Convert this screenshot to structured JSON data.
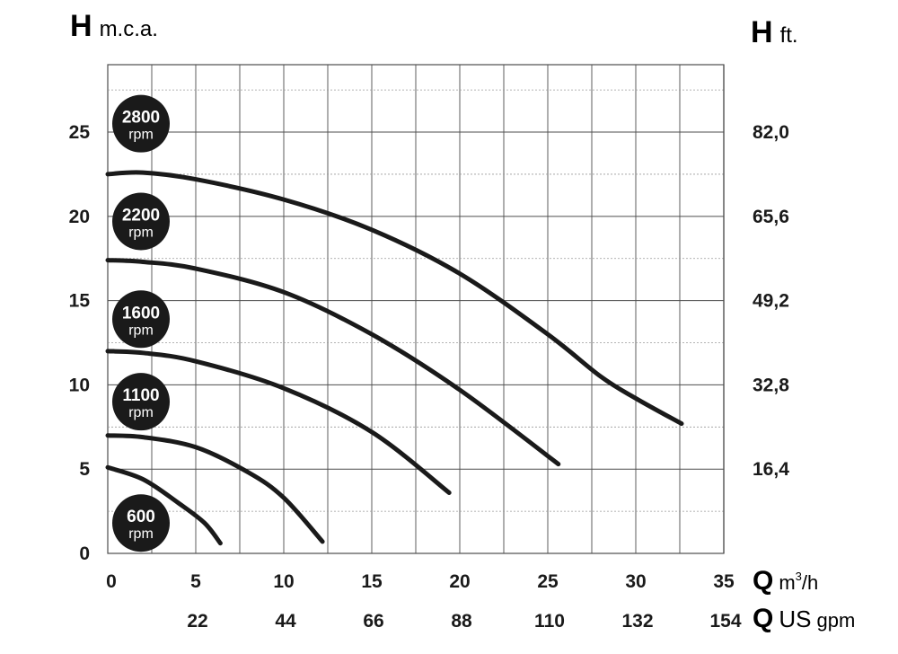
{
  "chart_data": {
    "type": "line",
    "left_axis": {
      "letter": "H",
      "unit": "m.c.a.",
      "ticks": [
        "0",
        "5",
        "10",
        "15",
        "20",
        "25"
      ],
      "tick_values": [
        0,
        5,
        10,
        15,
        20,
        25
      ],
      "ylim": [
        0,
        29
      ]
    },
    "right_axis": {
      "letter": "H",
      "unit": "ft.",
      "ticks": [
        "16,4",
        "32,8",
        "49,2",
        "65,6",
        "82,0"
      ],
      "tick_values_mca": [
        5,
        10,
        15,
        20,
        25
      ]
    },
    "bottom_axis_primary": {
      "letter": "Q",
      "unit_base": "m",
      "unit_sup": "3",
      "unit_tail": "/h",
      "ticks": [
        "0",
        "5",
        "10",
        "15",
        "20",
        "25",
        "30",
        "35"
      ],
      "tick_values": [
        0,
        5,
        10,
        15,
        20,
        25,
        30,
        35
      ],
      "xlim": [
        0,
        35
      ]
    },
    "bottom_axis_secondary": {
      "letter": "Q",
      "unit_main": "US",
      "unit_small": "gpm",
      "ticks": [
        "22",
        "44",
        "66",
        "88",
        "110",
        "132",
        "154"
      ],
      "tick_values_m3h": [
        5,
        10,
        15,
        20,
        25,
        30,
        35
      ]
    },
    "grid": true,
    "series": [
      {
        "name": "2800 rpm",
        "speed": "2800",
        "unit": "rpm",
        "badge_y": 25.5,
        "points": [
          [
            0,
            22.5
          ],
          [
            2,
            22.6
          ],
          [
            5,
            22.2
          ],
          [
            10,
            21.0
          ],
          [
            15,
            19.2
          ],
          [
            20,
            16.6
          ],
          [
            25,
            13.0
          ],
          [
            28,
            10.5
          ],
          [
            30,
            9.2
          ],
          [
            32.6,
            7.7
          ]
        ]
      },
      {
        "name": "2200 rpm",
        "speed": "2200",
        "unit": "rpm",
        "badge_y": 19.7,
        "points": [
          [
            0,
            17.4
          ],
          [
            2,
            17.3
          ],
          [
            5,
            16.9
          ],
          [
            10,
            15.5
          ],
          [
            15,
            13.0
          ],
          [
            20,
            9.7
          ],
          [
            25.6,
            5.3
          ]
        ]
      },
      {
        "name": "1600 rpm",
        "speed": "1600",
        "unit": "rpm",
        "badge_y": 13.9,
        "points": [
          [
            0,
            12.0
          ],
          [
            2,
            11.9
          ],
          [
            5,
            11.4
          ],
          [
            10,
            9.8
          ],
          [
            15,
            7.2
          ],
          [
            19.4,
            3.6
          ]
        ]
      },
      {
        "name": "1100 rpm",
        "speed": "1100",
        "unit": "rpm",
        "badge_y": 9.0,
        "points": [
          [
            0,
            7.0
          ],
          [
            2,
            6.9
          ],
          [
            5,
            6.3
          ],
          [
            8,
            4.8
          ],
          [
            10,
            3.3
          ],
          [
            12.2,
            0.7
          ]
        ]
      },
      {
        "name": "600 rpm",
        "speed": "600",
        "unit": "rpm",
        "badge_y": 1.8,
        "points": [
          [
            0,
            5.1
          ],
          [
            2,
            4.4
          ],
          [
            4,
            3.0
          ],
          [
            5.5,
            1.8
          ],
          [
            6.4,
            0.6
          ]
        ]
      }
    ]
  },
  "colors": {
    "curve": "#1a1a1a",
    "grid_major": "#4d4d4d",
    "grid_minor": "#9a9a9a",
    "badge": "#1a1a1a",
    "text": "#1a1a1a",
    "background": "#ffffff"
  }
}
